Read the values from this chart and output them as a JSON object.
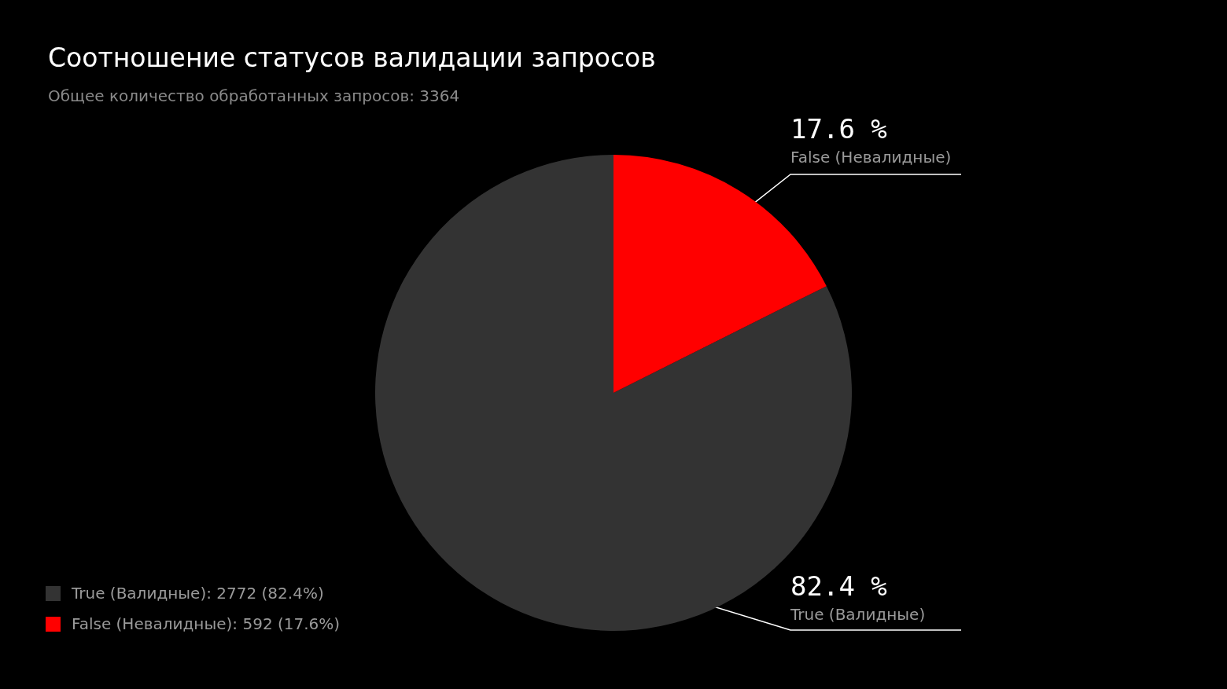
{
  "chart_data": {
    "type": "pie",
    "title": "Соотношение статусов валидации запросов",
    "subtitle": "Общее количество обработанных запросов: 3364",
    "categories": [
      "True (Валидные)",
      "False (Невалидные)"
    ],
    "values": [
      82.4,
      17.6
    ],
    "colors": [
      "#333333",
      "#ff0000"
    ],
    "value_labels": [
      "82.4 %",
      "17.6 %"
    ],
    "annotations": [
      "True (Валидные): 2772 (82.4%)",
      "False (Невалидные): 592 (17.6%)"
    ]
  }
}
